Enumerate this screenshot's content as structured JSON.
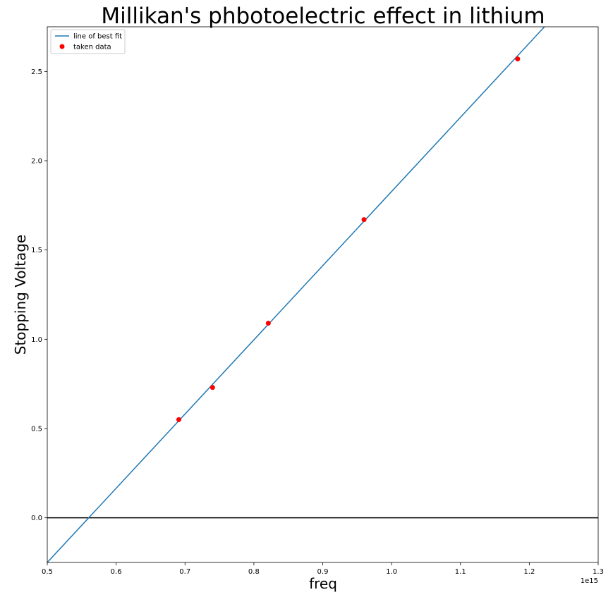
{
  "chart_data": {
    "type": "scatter",
    "title": "Millikan's phbotoelectric effect in lithium",
    "xlabel": "freq",
    "ylabel": "Stopping Voltage",
    "x_offset_label": "1e15",
    "xlim": [
      0.5,
      1.3
    ],
    "ylim": [
      -0.25,
      2.75
    ],
    "xticks": [
      0.5,
      0.6,
      0.7,
      0.8,
      0.9,
      1.0,
      1.1,
      1.2,
      1.3
    ],
    "xtick_labels": [
      "0.5",
      "0.6",
      "0.7",
      "0.8",
      "0.9",
      "1.0",
      "1.1",
      "1.2",
      "1.3"
    ],
    "yticks": [
      0.0,
      0.5,
      1.0,
      1.5,
      2.0,
      2.5
    ],
    "ytick_labels": [
      "0.0",
      "0.5",
      "1.0",
      "1.5",
      "2.0",
      "2.5"
    ],
    "grid": false,
    "legend_position": "upper-left",
    "horizontal_line": {
      "y": 0.0,
      "color": "#000000"
    },
    "series": [
      {
        "name": "line of best fit",
        "type": "line",
        "color": "#1f77b4",
        "x": [
          0.5,
          1.222
        ],
        "y": [
          -0.25,
          2.75
        ]
      },
      {
        "name": "taken data",
        "type": "scatter",
        "color": "#ff0000",
        "x": [
          0.691,
          0.74,
          0.821,
          0.96,
          1.183
        ],
        "y": [
          0.55,
          0.73,
          1.09,
          1.67,
          2.57
        ]
      }
    ]
  }
}
